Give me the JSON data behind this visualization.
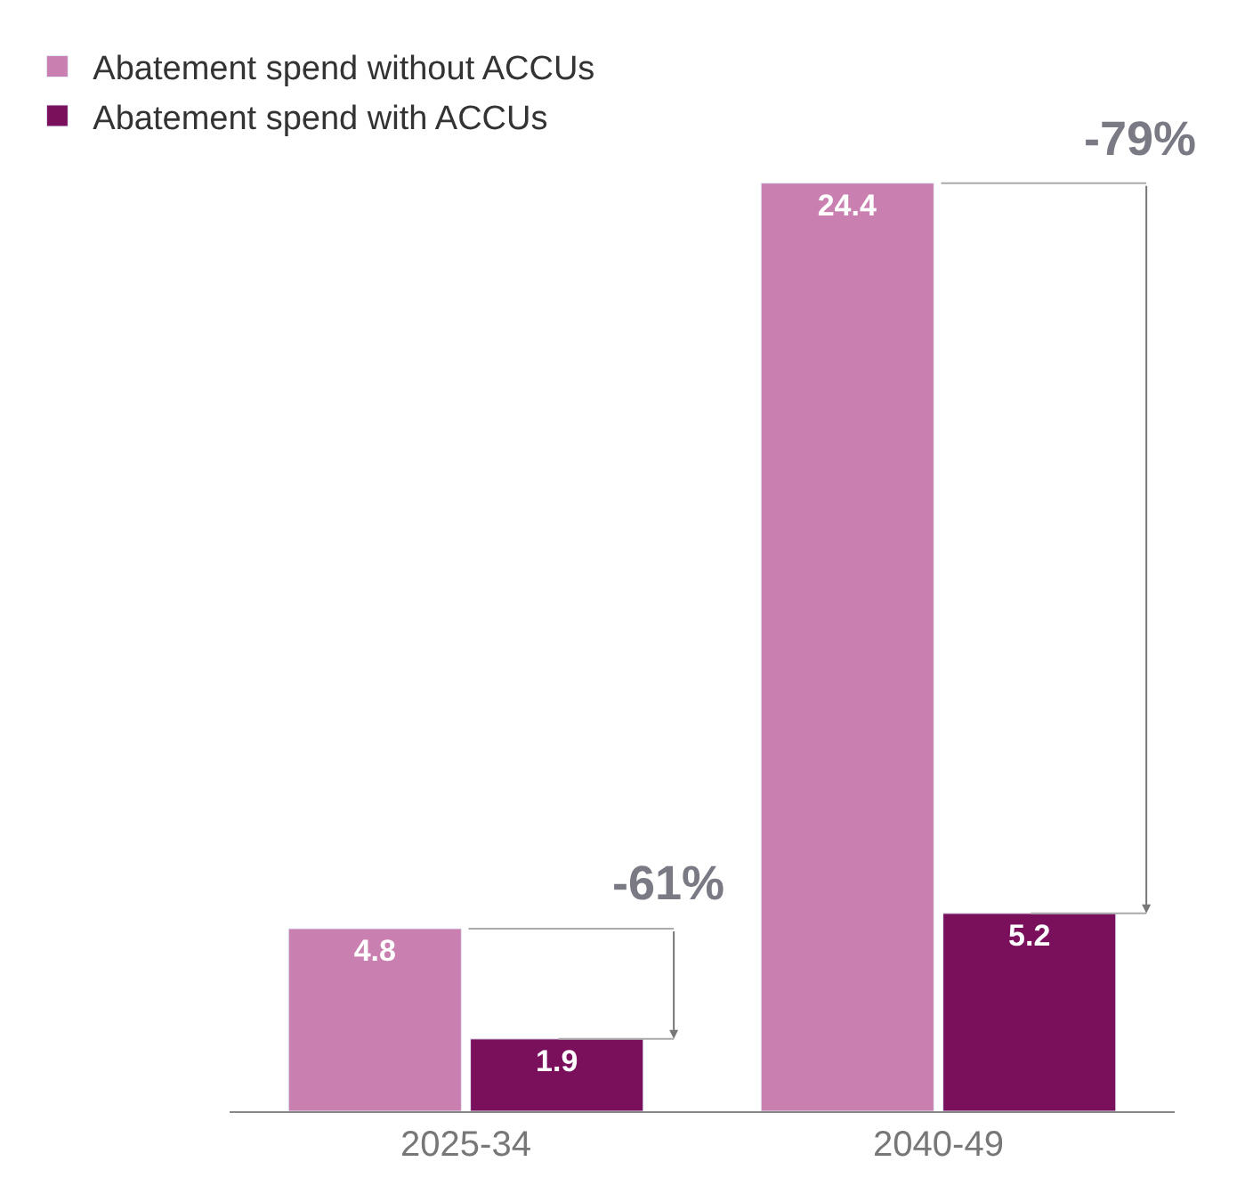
{
  "chart_data": {
    "type": "bar",
    "categories": [
      "2025-34",
      "2040-49"
    ],
    "series": [
      {
        "name": "Abatement spend without ACCUs",
        "color": "#c980b0",
        "values": [
          4.8,
          24.4
        ]
      },
      {
        "name": "Abatement spend with ACCUs",
        "color": "#7a0f5c",
        "values": [
          1.9,
          5.2
        ]
      }
    ],
    "data_labels": true,
    "tick_labels": "x",
    "legend": "top left",
    "annotations": [
      "-61%",
      "-79%"
    ]
  }
}
